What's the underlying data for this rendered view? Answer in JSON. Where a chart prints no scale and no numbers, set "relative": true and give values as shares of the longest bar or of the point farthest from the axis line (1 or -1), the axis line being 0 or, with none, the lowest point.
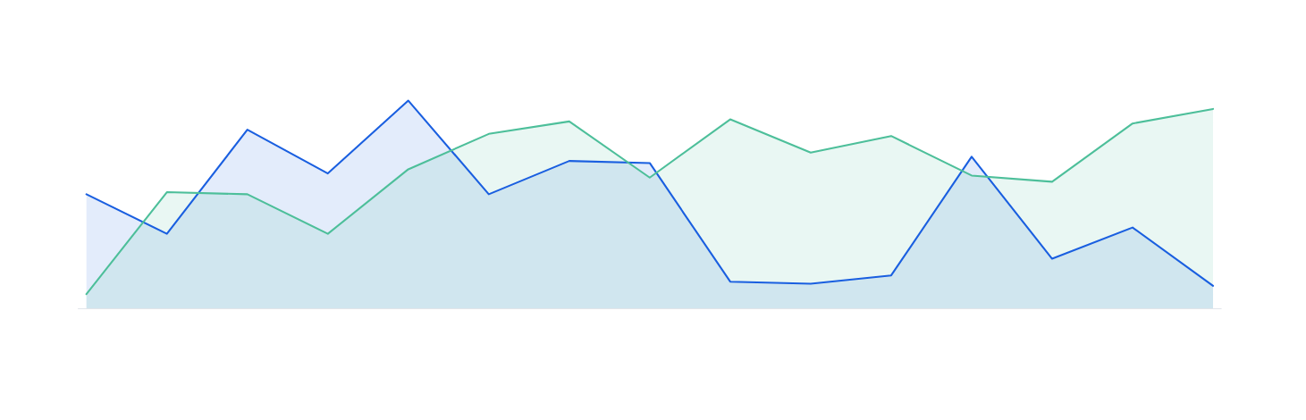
{
  "chart_data": {
    "type": "area",
    "relative": true,
    "categories": [
      null,
      null,
      null,
      null,
      null,
      null,
      null,
      null,
      null,
      null,
      null,
      null,
      null,
      null,
      null
    ],
    "series": [
      {
        "color": "#1a5fe0",
        "values": [
          0.55,
          0.36,
          0.86,
          0.65,
          1.0,
          0.55,
          0.71,
          0.7,
          0.13,
          0.12,
          0.16,
          0.73,
          0.24,
          0.39,
          0.11
        ]
      },
      {
        "color": "#4dbf9a",
        "values": [
          0.07,
          0.56,
          0.55,
          0.36,
          0.67,
          0.84,
          0.9,
          0.63,
          0.91,
          0.75,
          0.83,
          0.64,
          0.61,
          0.89,
          0.96
        ]
      }
    ]
  }
}
